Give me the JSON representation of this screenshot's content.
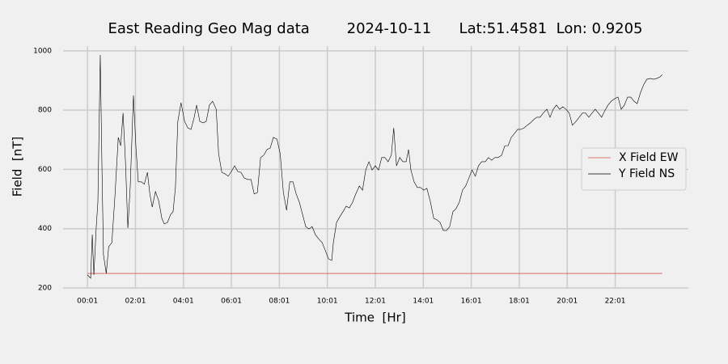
{
  "chart_data": {
    "type": "line",
    "title": "East Reading Geo Mag data        2024-10-11      Lat:51.4581  Lon: 0.9205",
    "xlabel": "Time  [Hr]",
    "ylabel": "Field  [nT]",
    "xlim": [
      -60,
      1504
    ],
    "ylim": [
      200,
      1016
    ],
    "xticks": [
      {
        "value": 1,
        "label": "00:01"
      },
      {
        "value": 121,
        "label": "02:01"
      },
      {
        "value": 241,
        "label": "04:01"
      },
      {
        "value": 361,
        "label": "06:01"
      },
      {
        "value": 481,
        "label": "08:01"
      },
      {
        "value": 601,
        "label": "10:01"
      },
      {
        "value": 721,
        "label": "12:01"
      },
      {
        "value": 841,
        "label": "14:01"
      },
      {
        "value": 961,
        "label": "16:01"
      },
      {
        "value": 1081,
        "label": "18:01"
      },
      {
        "value": 1201,
        "label": "20:01"
      },
      {
        "value": 1321,
        "label": "22:01"
      }
    ],
    "yticks": [
      200,
      400,
      600,
      800,
      1000
    ],
    "grid": true,
    "legend": "right",
    "series": [
      {
        "name": "X Field EW",
        "color": "#d9534f",
        "x": [
          1,
          1439
        ],
        "values": [
          249,
          249
        ]
      },
      {
        "name": "Y Field NS",
        "color": "#000000",
        "x": [
          1,
          9,
          13,
          17,
          23,
          27,
          33,
          37,
          41,
          48,
          54,
          62,
          70,
          78,
          84,
          90,
          96,
          102,
          108,
          116,
          122,
          128,
          136,
          143,
          151,
          157,
          163,
          171,
          179,
          187,
          193,
          201,
          209,
          215,
          221,
          227,
          235,
          244,
          252,
          260,
          268,
          274,
          282,
          290,
          298,
          306,
          314,
          323,
          329,
          337,
          345,
          353,
          361,
          369,
          377,
          385,
          393,
          402,
          410,
          418,
          426,
          434,
          442,
          450,
          458,
          466,
          475,
          483,
          491,
          499,
          507,
          515,
          523,
          531,
          539,
          547,
          555,
          563,
          571,
          579,
          588,
          596,
          604,
          612,
          616,
          624,
          632,
          640,
          648,
          656,
          664,
          672,
          681,
          689,
          697,
          705,
          713,
          721,
          729,
          737,
          745,
          753,
          761,
          767,
          774,
          782,
          790,
          798,
          804,
          810,
          818,
          826,
          834,
          842,
          850,
          859,
          867,
          875,
          883,
          891,
          899,
          907,
          915,
          923,
          931,
          939,
          947,
          955,
          963,
          971,
          979,
          987,
          996,
          1004,
          1012,
          1020,
          1028,
          1037,
          1045,
          1053,
          1061,
          1069,
          1077,
          1085,
          1093,
          1101,
          1109,
          1117,
          1125,
          1133,
          1141,
          1150,
          1158,
          1166,
          1174,
          1182,
          1190,
          1198,
          1206,
          1214,
          1223,
          1231,
          1239,
          1247,
          1255,
          1263,
          1271,
          1279,
          1287,
          1295,
          1303,
          1311,
          1320,
          1328,
          1336,
          1344,
          1352,
          1360,
          1368,
          1376,
          1384,
          1392,
          1400,
          1409,
          1417,
          1425,
          1433,
          1439
        ],
        "values": [
          244,
          233,
          380,
          244,
          407,
          490,
          986,
          626,
          312,
          249,
          339,
          353,
          517,
          708,
          680,
          790,
          626,
          402,
          544,
          850,
          680,
          558,
          558,
          550,
          590,
          517,
          473,
          525,
          495,
          435,
          416,
          421,
          448,
          457,
          539,
          762,
          825,
          762,
          740,
          735,
          776,
          817,
          762,
          757,
          762,
          817,
          830,
          803,
          653,
          590,
          585,
          577,
          593,
          612,
          593,
          590,
          571,
          566,
          566,
          517,
          522,
          640,
          648,
          667,
          672,
          708,
          702,
          653,
          522,
          462,
          558,
          558,
          517,
          489,
          448,
          407,
          399,
          407,
          380,
          366,
          353,
          326,
          298,
          293,
          353,
          421,
          440,
          457,
          476,
          470,
          489,
          517,
          544,
          530,
          598,
          626,
          598,
          612,
          598,
          640,
          640,
          626,
          648,
          740,
          612,
          640,
          626,
          626,
          667,
          598,
          558,
          539,
          539,
          530,
          536,
          489,
          435,
          430,
          421,
          394,
          394,
          407,
          457,
          468,
          489,
          530,
          544,
          571,
          598,
          577,
          612,
          626,
          626,
          640,
          631,
          640,
          640,
          648,
          680,
          680,
          708,
          721,
          735,
          735,
          740,
          749,
          757,
          768,
          776,
          776,
          790,
          803,
          776,
          803,
          817,
          803,
          811,
          803,
          790,
          749,
          762,
          776,
          790,
          790,
          776,
          790,
          803,
          790,
          776,
          798,
          817,
          830,
          839,
          844,
          803,
          817,
          844,
          844,
          830,
          822,
          858,
          885,
          904,
          907,
          904,
          907,
          912,
          920
        ]
      }
    ]
  }
}
